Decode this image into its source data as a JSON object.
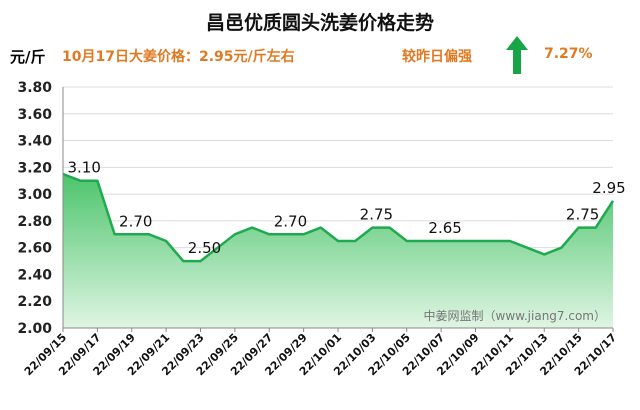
{
  "title": "昌邑优质圆头洗姜价格走势",
  "unit_label": "元/斤",
  "headline": "10月17日大姜价格：2.95元/斤左右",
  "compare_label": "较昨日偏强",
  "change_pct": "7.27%",
  "arrow_icon": "up-arrow-icon",
  "source": "中姜网监制（www.jiang7.com）",
  "colors": {
    "line": "#1faa4f",
    "fill_top": "#4cc46c",
    "fill_bottom": "#dff5e3",
    "accent": "#e07a22",
    "arrow": "#17a548"
  },
  "chart_data": {
    "type": "area",
    "title": "昌邑优质圆头洗姜价格走势",
    "xlabel": "",
    "ylabel": "元/斤",
    "ylim": [
      2.0,
      3.8
    ],
    "yticks": [
      "2.00",
      "2.20",
      "2.40",
      "2.60",
      "2.80",
      "3.00",
      "3.20",
      "3.40",
      "3.60",
      "3.80"
    ],
    "x": [
      "22/09/15",
      "22/09/16",
      "22/09/17",
      "22/09/18",
      "22/09/19",
      "22/09/20",
      "22/09/21",
      "22/09/22",
      "22/09/23",
      "22/09/24",
      "22/09/25",
      "22/09/26",
      "22/09/27",
      "22/09/28",
      "22/09/29",
      "22/09/30",
      "22/10/01",
      "22/10/02",
      "22/10/03",
      "22/10/04",
      "22/10/05",
      "22/10/06",
      "22/10/07",
      "22/10/08",
      "22/10/09",
      "22/10/10",
      "22/10/11",
      "22/10/12",
      "22/10/13",
      "22/10/14",
      "22/10/15",
      "22/10/16",
      "22/10/17"
    ],
    "xticks": [
      "22/09/15",
      "22/09/17",
      "22/09/19",
      "22/09/21",
      "22/09/23",
      "22/09/25",
      "22/09/27",
      "22/09/29",
      "22/10/01",
      "22/10/03",
      "22/10/05",
      "22/10/07",
      "22/10/09",
      "22/10/11",
      "22/10/13",
      "22/10/15",
      "22/10/17"
    ],
    "series": [
      {
        "name": "昌邑优质圆头洗姜",
        "values": [
          3.15,
          3.1,
          3.1,
          2.7,
          2.7,
          2.7,
          2.65,
          2.5,
          2.5,
          2.6,
          2.7,
          2.75,
          2.7,
          2.7,
          2.7,
          2.75,
          2.65,
          2.65,
          2.75,
          2.75,
          2.65,
          2.65,
          2.65,
          2.65,
          2.65,
          2.65,
          2.65,
          2.6,
          2.55,
          2.6,
          2.75,
          2.75,
          2.95
        ]
      }
    ],
    "data_labels": [
      {
        "index": 1,
        "text": "3.10"
      },
      {
        "index": 4,
        "text": "2.70"
      },
      {
        "index": 8,
        "text": "2.50"
      },
      {
        "index": 13,
        "text": "2.70"
      },
      {
        "index": 18,
        "text": "2.75"
      },
      {
        "index": 22,
        "text": "2.65"
      },
      {
        "index": 30,
        "text": "2.75"
      },
      {
        "index": 32,
        "text": "2.95"
      }
    ]
  }
}
